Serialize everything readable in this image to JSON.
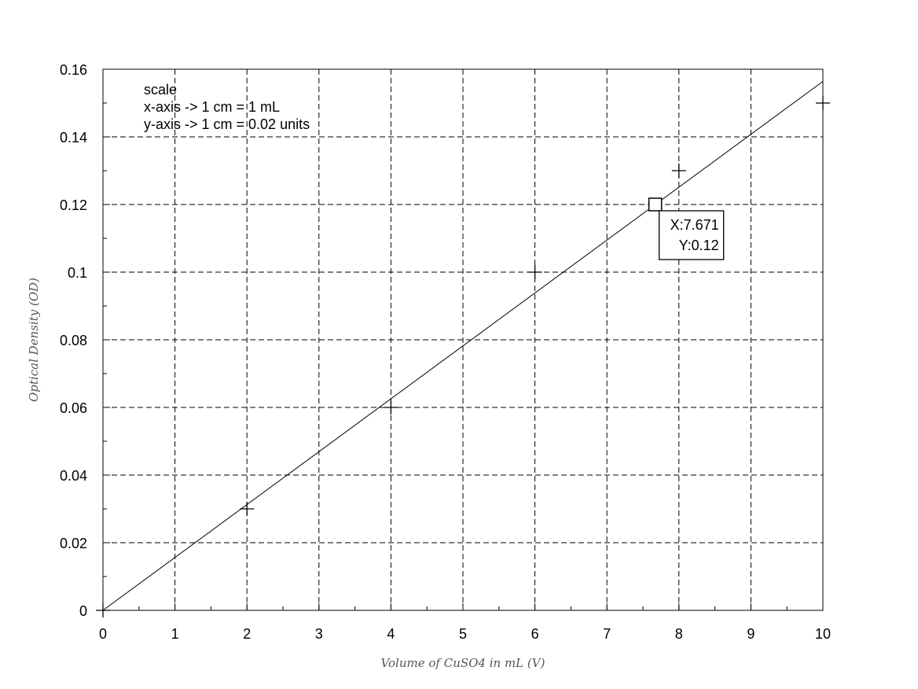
{
  "chart_data": {
    "type": "scatter",
    "xlabel": "Volume of CuSO4 in mL (V)",
    "ylabel": "Optical Density (OD)",
    "xlim": [
      0,
      10
    ],
    "ylim": [
      0,
      0.16
    ],
    "x_ticks": [
      "0",
      "1",
      "2",
      "3",
      "4",
      "5",
      "6",
      "7",
      "8",
      "9",
      "10"
    ],
    "y_ticks": [
      "0",
      "0.02",
      "0.04",
      "0.06",
      "0.08",
      "0.1",
      "0.12",
      "0.14",
      "0.16"
    ],
    "grid": true,
    "series": [
      {
        "marker": "plus",
        "points": [
          {
            "x": 0,
            "y": 0
          },
          {
            "x": 2,
            "y": 0.03
          },
          {
            "x": 4,
            "y": 0.06
          },
          {
            "x": 6,
            "y": 0.1
          },
          {
            "x": 8,
            "y": 0.13
          },
          {
            "x": 10,
            "y": 0.15
          }
        ]
      }
    ],
    "fit_line": {
      "x": [
        0,
        10
      ],
      "y": [
        0,
        0.1564
      ]
    },
    "annotation": {
      "lines": [
        "scale",
        "x-axis -> 1 cm = 1 mL",
        "y-axis -> 1 cm = 0.02 units"
      ]
    },
    "datatip": {
      "x": 7.671,
      "y": 0.12,
      "x_text": "X:7.671",
      "y_text": "Y:0.12"
    }
  }
}
